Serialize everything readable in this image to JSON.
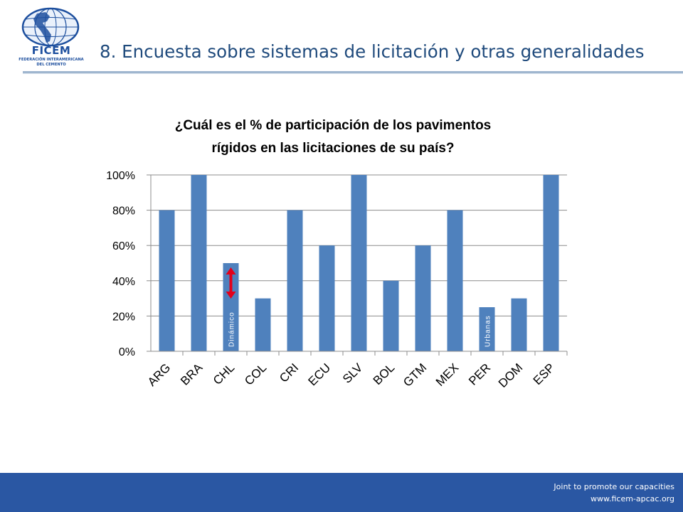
{
  "header": {
    "logo_text": "FICEM",
    "logo_subtitle_1": "FEDERACIÓN INTERAMERICANA",
    "logo_subtitle_2": "DEL CEMENTO",
    "title": "8. Encuesta sobre sistemas de licitación y otras generalidades"
  },
  "footer": {
    "tagline": "Joint  to promote our capacities",
    "website": "www.ficem-apcac.org"
  },
  "colors": {
    "bar": "#4f81bd",
    "arrow": "#e3001b",
    "footer": "#2a57a3",
    "title": "#1f4a7c"
  },
  "chart_data": {
    "type": "bar",
    "title_line1": "¿Cuál es el % de participación de los pavimentos",
    "title_line2": "rígidos en las licitaciones de su país?",
    "categories": [
      "ARG",
      "BRA",
      "CHL",
      "COL",
      "CRI",
      "ECU",
      "SLV",
      "BOL",
      "GTM",
      "MEX",
      "PER",
      "DOM",
      "ESP"
    ],
    "values": [
      80,
      100,
      50,
      30,
      80,
      60,
      100,
      40,
      60,
      80,
      25,
      30,
      100
    ],
    "value_format": "percent",
    "ylim": [
      0,
      100
    ],
    "yticks": [
      "0%",
      "20%",
      "40%",
      "60%",
      "80%",
      "100%"
    ],
    "grid": true,
    "annotations": [
      {
        "category": "CHL",
        "text": "Dinámico",
        "marker": "double-arrow"
      },
      {
        "category": "PER",
        "text": "Urbanas"
      }
    ]
  }
}
